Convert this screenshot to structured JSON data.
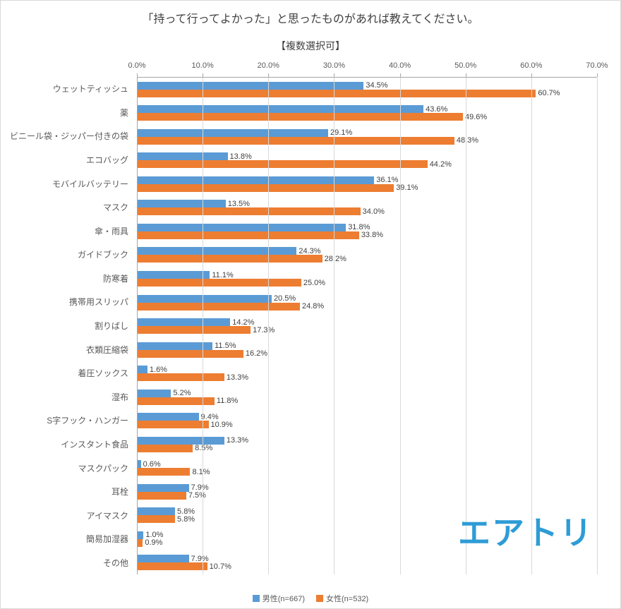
{
  "chart_data": {
    "type": "bar",
    "orientation": "horizontal",
    "title": "「持って行ってよかった」と思ったものがあれば教えてください。",
    "subtitle": "【複数選択可】",
    "categories": [
      "ウェットティッシュ",
      "薬",
      "ビニール袋・ジッパー付きの袋",
      "エコバッグ",
      "モバイルバッテリー",
      "マスク",
      "傘・雨具",
      "ガイドブック",
      "防寒着",
      "携帯用スリッパ",
      "割りばし",
      "衣類圧縮袋",
      "着圧ソックス",
      "湿布",
      "S字フック・ハンガー",
      "インスタント食品",
      "マスクパック",
      "耳栓",
      "アイマスク",
      "簡易加湿器",
      "その他"
    ],
    "series": [
      {
        "name": "男性(n=667)",
        "color": "#5B9BD5",
        "values": [
          34.5,
          43.6,
          29.1,
          13.8,
          36.1,
          13.5,
          31.8,
          24.3,
          11.1,
          20.5,
          14.2,
          11.5,
          1.6,
          5.2,
          9.4,
          13.3,
          0.6,
          7.9,
          5.8,
          1.0,
          7.9
        ]
      },
      {
        "name": "女性(n=532)",
        "color": "#ED7D31",
        "values": [
          60.7,
          49.6,
          48.3,
          44.2,
          39.1,
          34.0,
          33.8,
          28.2,
          25.0,
          24.8,
          17.3,
          16.2,
          13.3,
          11.8,
          10.9,
          8.5,
          8.1,
          7.5,
          5.8,
          0.9,
          10.7
        ]
      }
    ],
    "xlim": [
      0,
      70
    ],
    "x_ticks": [
      "0.0%",
      "10.0%",
      "20.0%",
      "30.0%",
      "40.0%",
      "50.0%",
      "60.0%",
      "70.0%"
    ],
    "value_suffix": "%",
    "grid": true,
    "legend_position": "bottom"
  },
  "logo": {
    "text": "エアトリ",
    "color": "#2E9CD6"
  }
}
